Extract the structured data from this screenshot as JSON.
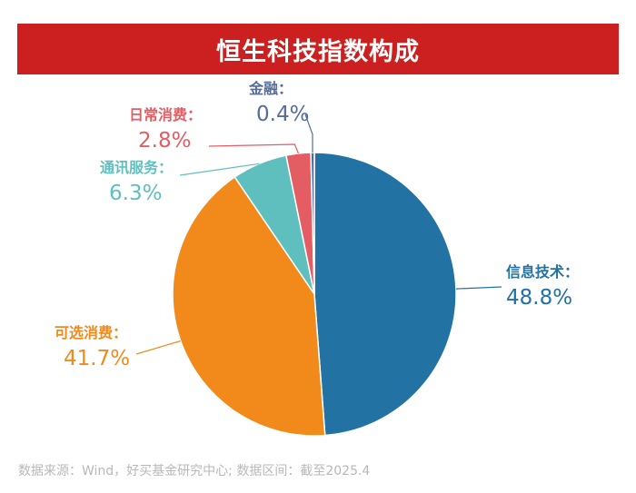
{
  "chart_data": {
    "type": "pie",
    "title": "恒生科技指数构成",
    "slices": [
      {
        "label": "信息技术：",
        "value": 48.8,
        "value_text": "48.8%",
        "color": "#2272a3"
      },
      {
        "label": "可选消费：",
        "value": 41.7,
        "value_text": "41.7%",
        "color": "#f28a1b"
      },
      {
        "label": "通讯服务：",
        "value": 6.3,
        "value_text": "6.3%",
        "color": "#5fbfbf"
      },
      {
        "label": "日常消费：",
        "value": 2.8,
        "value_text": "2.8%",
        "color": "#e35d63"
      },
      {
        "label": "金融：",
        "value": 0.4,
        "value_text": "0.4%",
        "color": "#566c99"
      }
    ]
  },
  "source_note": "数据来源：Wind，好买基金研究中心; 数据区间：截至2025.4"
}
